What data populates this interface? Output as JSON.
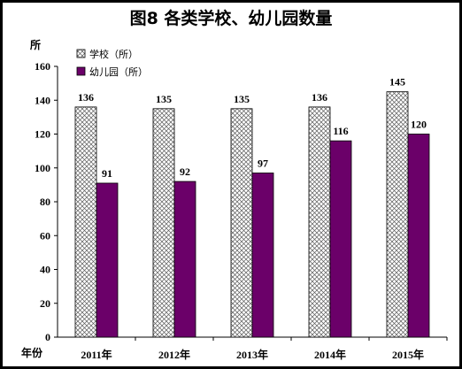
{
  "chart_data": {
    "type": "bar",
    "title": "图8  各类学校、幼儿园数量",
    "ylabel": "所",
    "xlabel": "年份",
    "categories": [
      "2011年",
      "2012年",
      "2013年",
      "2014年",
      "2015年"
    ],
    "ylim": [
      0,
      160
    ],
    "yticks": [
      0,
      20,
      40,
      60,
      80,
      100,
      120,
      140,
      160
    ],
    "grid": false,
    "legend_position": "top-left",
    "series": [
      {
        "name": "学校（所）",
        "values": [
          136,
          135,
          135,
          136,
          145
        ],
        "style": "crosshatch",
        "color": "#ffffff"
      },
      {
        "name": "幼儿园（所）",
        "values": [
          91,
          92,
          97,
          116,
          120
        ],
        "style": "solid",
        "color": "#6b0069"
      }
    ]
  }
}
